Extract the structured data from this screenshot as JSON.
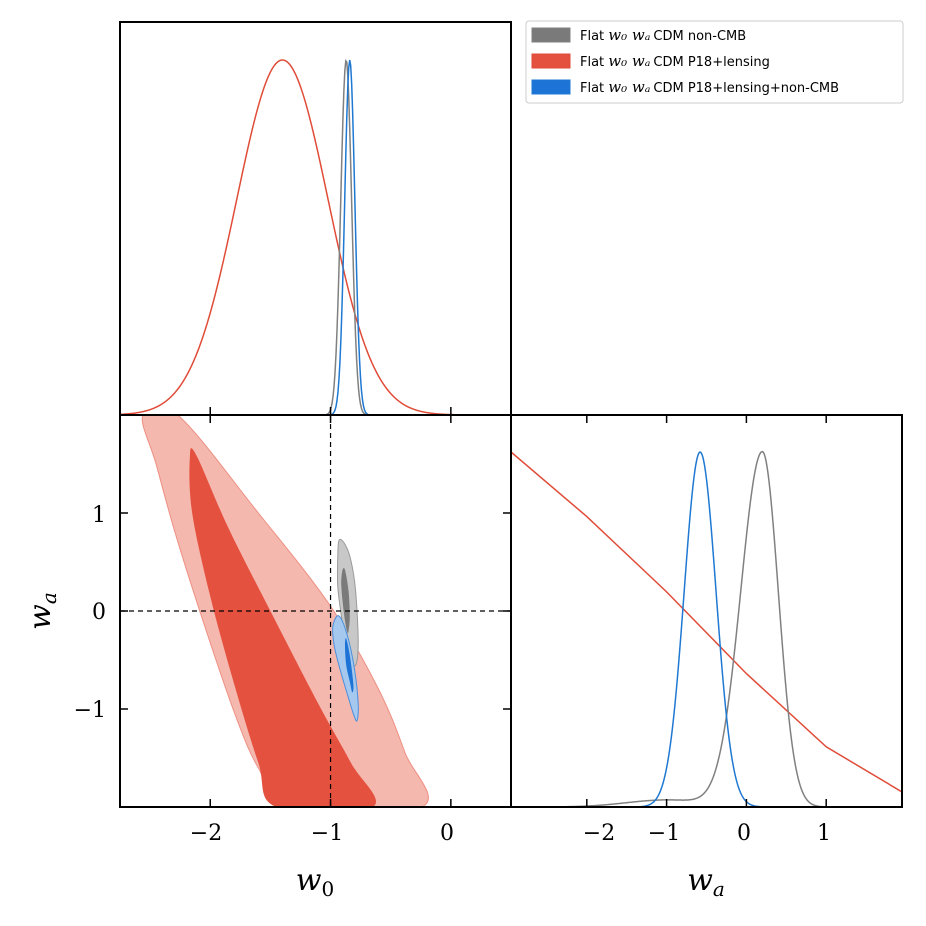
{
  "chart_data": {
    "type": "corner_plot",
    "parameters": [
      "w0",
      "wa"
    ],
    "axis_labels": {
      "w0": "w",
      "w0_sub": "0",
      "wa": "w",
      "wa_sub": "a"
    },
    "w0_range": [
      -2.75,
      0.5
    ],
    "wa_range": [
      -2.0,
      2.0
    ],
    "wa_1d_range": [
      -2.95,
      1.95
    ],
    "w0_ticks": [
      "−2",
      "−1",
      "0"
    ],
    "wa_ticks": [
      "1",
      "0",
      "−1"
    ],
    "wa_1d_ticks": [
      "−2",
      "−1",
      "0",
      "1"
    ],
    "reference_lines": {
      "w0": -1,
      "wa": 0
    },
    "legend": {
      "position": "top-right",
      "entries": [
        {
          "label_pre": "Flat ",
          "label_math": "w₀ wₐ",
          "label_post": "CDM non-CMB"
        },
        {
          "label_pre": "Flat ",
          "label_math": "w₀ wₐ",
          "label_post": "CDM P18+lensing"
        },
        {
          "label_pre": "Flat ",
          "label_math": "w₀ wₐ",
          "label_post": "CDM P18+lensing+non-CMB"
        }
      ]
    },
    "series": [
      {
        "name": "Flat w0waCDM non-CMB",
        "color_line": "#808080",
        "color_fill_inner": "#7a7a7a",
        "color_fill_outer": "#c8c8c8",
        "w0_posterior": {
          "mean": -0.87,
          "sigma": 0.045
        },
        "wa_posterior": {
          "mean": 0.2,
          "sigma": 0.2
        },
        "contour_68": [
          [
            -0.91,
            0.33
          ],
          [
            -0.9,
            0.42
          ],
          [
            -0.88,
            0.42
          ],
          [
            -0.85,
            0.2
          ],
          [
            -0.84,
            -0.06
          ],
          [
            -0.85,
            -0.2
          ],
          [
            -0.86,
            -0.22
          ],
          [
            -0.88,
            -0.1
          ],
          [
            -0.9,
            0.1
          ],
          [
            -0.91,
            0.25
          ]
        ],
        "contour_95": [
          [
            -0.94,
            0.55
          ],
          [
            -0.93,
            0.72
          ],
          [
            -0.89,
            0.7
          ],
          [
            -0.84,
            0.56
          ],
          [
            -0.8,
            0.3
          ],
          [
            -0.78,
            0.0
          ],
          [
            -0.77,
            -0.35
          ],
          [
            -0.79,
            -0.55
          ],
          [
            -0.83,
            -0.5
          ],
          [
            -0.88,
            -0.3
          ],
          [
            -0.91,
            -0.05
          ],
          [
            -0.94,
            0.25
          ]
        ]
      },
      {
        "name": "Flat w0waCDM P18+lensing",
        "color_line": "#e04c38",
        "color_fill_inner": "#e5513f",
        "color_fill_outer": "#f4b8ae",
        "w0_posterior": {
          "mean": -1.4,
          "sigma": 0.38
        },
        "wa_1d_curve": [
          [
            -2.95,
            1.65
          ],
          [
            -2.0,
            1.35
          ],
          [
            -1.0,
            1.0
          ],
          [
            0.0,
            0.62
          ],
          [
            1.0,
            0.28
          ],
          [
            1.95,
            0.07
          ]
        ],
        "contour_68": [
          [
            -2.17,
            1.55
          ],
          [
            -2.12,
            1.6
          ],
          [
            -1.85,
            0.85
          ],
          [
            -1.5,
            0.0
          ],
          [
            -1.1,
            -0.95
          ],
          [
            -0.83,
            -1.55
          ],
          [
            -0.65,
            -2.0
          ],
          [
            -1.45,
            -2.0
          ],
          [
            -1.6,
            -1.55
          ],
          [
            -1.8,
            -0.75
          ],
          [
            -2.0,
            0.15
          ],
          [
            -2.15,
            1.0
          ]
        ],
        "contour_95": [
          [
            -2.56,
            2.0
          ],
          [
            -2.27,
            2.0
          ],
          [
            -1.6,
            1.0
          ],
          [
            -1.0,
            0.05
          ],
          [
            -0.6,
            -0.8
          ],
          [
            -0.38,
            -1.45
          ],
          [
            -0.24,
            -2.0
          ],
          [
            -1.34,
            -2.0
          ],
          [
            -1.6,
            -1.6
          ],
          [
            -1.78,
            -1.1
          ],
          [
            -2.02,
            -0.25
          ],
          [
            -2.28,
            0.75
          ],
          [
            -2.45,
            1.5
          ]
        ]
      },
      {
        "name": "Flat w0waCDM P18+lensing+non-CMB",
        "color_line": "#1f78d1",
        "color_fill_inner": "#1e73d6",
        "color_fill_outer": "#a5c8ee",
        "w0_posterior": {
          "mean": -0.84,
          "sigma": 0.042
        },
        "wa_posterior": {
          "mean": -0.58,
          "sigma": 0.2
        },
        "contour_68": [
          [
            -0.88,
            -0.35
          ],
          [
            -0.87,
            -0.28
          ],
          [
            -0.84,
            -0.45
          ],
          [
            -0.81,
            -0.75
          ],
          [
            -0.82,
            -0.83
          ],
          [
            -0.84,
            -0.72
          ],
          [
            -0.87,
            -0.55
          ]
        ],
        "contour_95": [
          [
            -0.98,
            -0.15
          ],
          [
            -0.93,
            -0.05
          ],
          [
            -0.86,
            -0.25
          ],
          [
            -0.8,
            -0.6
          ],
          [
            -0.77,
            -0.95
          ],
          [
            -0.78,
            -1.12
          ],
          [
            -0.81,
            -1.05
          ],
          [
            -0.86,
            -0.85
          ],
          [
            -0.92,
            -0.6
          ],
          [
            -0.97,
            -0.35
          ]
        ]
      }
    ]
  }
}
